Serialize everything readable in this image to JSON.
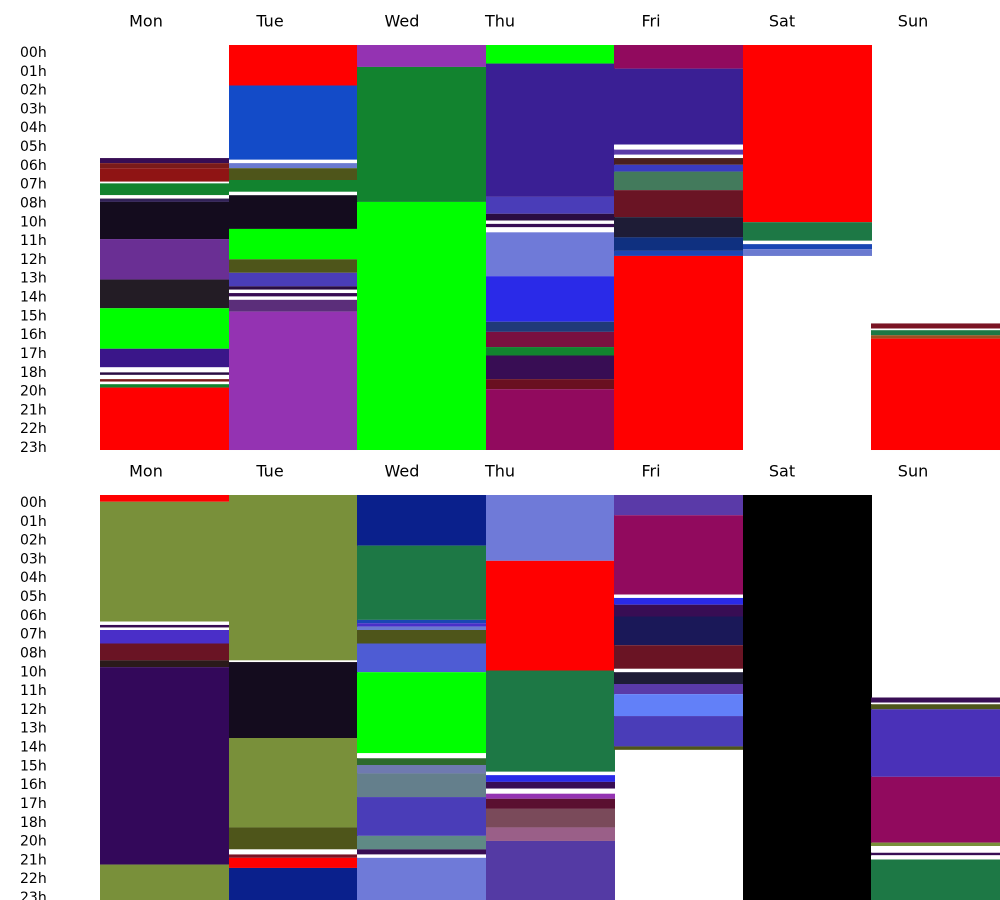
{
  "chart_data": [
    {
      "type": "heatmap",
      "categories": [
        "Mon",
        "Tue",
        "Wed",
        "Thu",
        "Fri",
        "Sat",
        "Sun"
      ],
      "hour_labels": [
        "00h",
        "01h",
        "02h",
        "03h",
        "04h",
        "05h",
        "06h",
        "07h",
        "08h",
        "10h",
        "11h",
        "12h",
        "13h",
        "14h",
        "15h",
        "16h",
        "17h",
        "18h",
        "20h",
        "21h",
        "22h",
        "23h"
      ],
      "ylim": [
        0,
        24
      ],
      "columns": [
        {
          "day": "Mon",
          "segments": [
            {
              "start": 6.7,
              "end": 7.0,
              "color": "#380d54"
            },
            {
              "start": 7.0,
              "end": 7.3,
              "color": "#7a1a1a"
            },
            {
              "start": 7.3,
              "end": 8.1,
              "color": "#8f1414"
            },
            {
              "start": 8.1,
              "end": 8.2,
              "color": "#ffffff"
            },
            {
              "start": 8.2,
              "end": 8.9,
              "color": "#12832f"
            },
            {
              "start": 8.9,
              "end": 9.1,
              "color": "#ffffff"
            },
            {
              "start": 9.1,
              "end": 9.3,
              "color": "#322257"
            },
            {
              "start": 9.3,
              "end": 11.5,
              "color": "#140c1e"
            },
            {
              "start": 11.5,
              "end": 13.9,
              "color": "#6a2f94"
            },
            {
              "start": 13.9,
              "end": 15.6,
              "color": "#231c25"
            },
            {
              "start": 15.6,
              "end": 18.0,
              "color": "#00ff00"
            },
            {
              "start": 18.0,
              "end": 19.1,
              "color": "#3a1689"
            },
            {
              "start": 19.1,
              "end": 19.4,
              "color": "#ffffff"
            },
            {
              "start": 19.4,
              "end": 19.55,
              "color": "#2a0d42"
            },
            {
              "start": 19.55,
              "end": 19.8,
              "color": "#ffffff"
            },
            {
              "start": 19.8,
              "end": 19.95,
              "color": "#7a1a1a"
            },
            {
              "start": 19.95,
              "end": 20.1,
              "color": "#ffffff"
            },
            {
              "start": 20.1,
              "end": 20.3,
              "color": "#12832f"
            },
            {
              "start": 20.3,
              "end": 24.0,
              "color": "#ff0000"
            }
          ]
        },
        {
          "day": "Tue",
          "segments": [
            {
              "start": 0.0,
              "end": 2.4,
              "color": "#ff0000"
            },
            {
              "start": 2.4,
              "end": 6.8,
              "color": "#134bc8"
            },
            {
              "start": 6.8,
              "end": 7.0,
              "color": "#ffffff"
            },
            {
              "start": 7.0,
              "end": 7.3,
              "color": "#6a7ad0"
            },
            {
              "start": 7.3,
              "end": 8.0,
              "color": "#4e551a"
            },
            {
              "start": 8.0,
              "end": 8.7,
              "color": "#12832f"
            },
            {
              "start": 8.7,
              "end": 8.9,
              "color": "#ffffff"
            },
            {
              "start": 8.9,
              "end": 10.9,
              "color": "#140c1e"
            },
            {
              "start": 10.9,
              "end": 12.7,
              "color": "#00ff00"
            },
            {
              "start": 12.7,
              "end": 13.5,
              "color": "#4e551a"
            },
            {
              "start": 13.5,
              "end": 14.3,
              "color": "#4a3db8"
            },
            {
              "start": 14.3,
              "end": 14.5,
              "color": "#2a0d42"
            },
            {
              "start": 14.5,
              "end": 14.7,
              "color": "#ffffff"
            },
            {
              "start": 14.7,
              "end": 14.9,
              "color": "#380d54"
            },
            {
              "start": 14.9,
              "end": 15.1,
              "color": "#ffffff"
            },
            {
              "start": 15.1,
              "end": 15.8,
              "color": "#5b2e7a"
            },
            {
              "start": 15.8,
              "end": 24.0,
              "color": "#9433b2"
            }
          ]
        },
        {
          "day": "Wed",
          "segments": [
            {
              "start": 0.0,
              "end": 1.3,
              "color": "#9433b2"
            },
            {
              "start": 1.3,
              "end": 9.3,
              "color": "#12832f"
            },
            {
              "start": 9.3,
              "end": 24.0,
              "color": "#00ff00"
            }
          ]
        },
        {
          "day": "Thu",
          "segments": [
            {
              "start": 0.0,
              "end": 1.1,
              "color": "#00ff00"
            },
            {
              "start": 1.1,
              "end": 9.0,
              "color": "#3a1f94"
            },
            {
              "start": 9.0,
              "end": 10.0,
              "color": "#4a3db8"
            },
            {
              "start": 10.0,
              "end": 10.4,
              "color": "#2a0d42"
            },
            {
              "start": 10.4,
              "end": 10.6,
              "color": "#ffffff"
            },
            {
              "start": 10.6,
              "end": 10.8,
              "color": "#380d54"
            },
            {
              "start": 10.8,
              "end": 11.1,
              "color": "#ffffff"
            },
            {
              "start": 11.1,
              "end": 13.7,
              "color": "#6f7ad8"
            },
            {
              "start": 13.7,
              "end": 16.4,
              "color": "#2a2ae8"
            },
            {
              "start": 16.4,
              "end": 17.0,
              "color": "#203a78"
            },
            {
              "start": 17.0,
              "end": 17.9,
              "color": "#7a1040"
            },
            {
              "start": 17.9,
              "end": 18.4,
              "color": "#12832f"
            },
            {
              "start": 18.4,
              "end": 19.8,
              "color": "#380d54"
            },
            {
              "start": 19.8,
              "end": 20.4,
              "color": "#6a1020"
            },
            {
              "start": 20.4,
              "end": 24.0,
              "color": "#910a5e"
            }
          ]
        },
        {
          "day": "Fri",
          "segments": [
            {
              "start": 0.0,
              "end": 1.4,
              "color": "#910a5e"
            },
            {
              "start": 1.4,
              "end": 5.9,
              "color": "#3a1f94"
            },
            {
              "start": 5.9,
              "end": 6.2,
              "color": "#ffffff"
            },
            {
              "start": 6.2,
              "end": 6.5,
              "color": "#5a3aa8"
            },
            {
              "start": 6.5,
              "end": 6.7,
              "color": "#ffffff"
            },
            {
              "start": 6.7,
              "end": 7.1,
              "color": "#4a1f1f"
            },
            {
              "start": 7.1,
              "end": 7.5,
              "color": "#3a3ac0"
            },
            {
              "start": 7.5,
              "end": 8.6,
              "color": "#437a5c"
            },
            {
              "start": 8.6,
              "end": 10.2,
              "color": "#6a1424"
            },
            {
              "start": 10.2,
              "end": 11.4,
              "color": "#1e1c36"
            },
            {
              "start": 11.4,
              "end": 12.2,
              "color": "#0f3080"
            },
            {
              "start": 12.2,
              "end": 12.5,
              "color": "#1a46b4"
            },
            {
              "start": 12.5,
              "end": 24.0,
              "color": "#ff0000"
            }
          ]
        },
        {
          "day": "Sat",
          "segments": [
            {
              "start": 0.0,
              "end": 10.5,
              "color": "#ff0000"
            },
            {
              "start": 10.5,
              "end": 11.6,
              "color": "#1d7845"
            },
            {
              "start": 11.6,
              "end": 11.8,
              "color": "#ffffff"
            },
            {
              "start": 11.8,
              "end": 12.1,
              "color": "#1a46b4"
            },
            {
              "start": 12.1,
              "end": 12.5,
              "color": "#6a7ad0"
            }
          ]
        },
        {
          "day": "Sun",
          "segments": [
            {
              "start": 16.5,
              "end": 16.8,
              "color": "#7a1424"
            },
            {
              "start": 16.8,
              "end": 16.9,
              "color": "#ffffff"
            },
            {
              "start": 16.9,
              "end": 17.2,
              "color": "#1d7845"
            },
            {
              "start": 17.2,
              "end": 17.4,
              "color": "#a04f20"
            },
            {
              "start": 17.4,
              "end": 24.0,
              "color": "#ff0000"
            }
          ]
        }
      ]
    },
    {
      "type": "heatmap",
      "categories": [
        "Mon",
        "Tue",
        "Wed",
        "Thu",
        "Fri",
        "Sat",
        "Sun"
      ],
      "hour_labels": [
        "00h",
        "01h",
        "02h",
        "03h",
        "04h",
        "05h",
        "06h",
        "07h",
        "08h",
        "10h",
        "11h",
        "12h",
        "13h",
        "14h",
        "15h",
        "16h",
        "17h",
        "18h",
        "20h",
        "21h",
        "22h",
        "23h"
      ],
      "ylim": [
        0,
        24
      ],
      "columns": [
        {
          "day": "Mon",
          "segments": [
            {
              "start": 0.0,
              "end": 0.4,
              "color": "#ff0000"
            },
            {
              "start": 0.4,
              "end": 7.5,
              "color": "#79903a"
            },
            {
              "start": 7.5,
              "end": 7.7,
              "color": "#ffffff"
            },
            {
              "start": 7.7,
              "end": 7.85,
              "color": "#380d54"
            },
            {
              "start": 7.85,
              "end": 8.0,
              "color": "#ffffff"
            },
            {
              "start": 8.0,
              "end": 8.8,
              "color": "#4a2fc8"
            },
            {
              "start": 8.8,
              "end": 9.8,
              "color": "#6a1424"
            },
            {
              "start": 9.8,
              "end": 10.2,
              "color": "#2a1a1a"
            },
            {
              "start": 10.2,
              "end": 21.9,
              "color": "#33085a"
            },
            {
              "start": 21.9,
              "end": 24.0,
              "color": "#79903a"
            }
          ]
        },
        {
          "day": "Tue",
          "segments": [
            {
              "start": 0.0,
              "end": 9.8,
              "color": "#79903a"
            },
            {
              "start": 9.8,
              "end": 9.9,
              "color": "#ffffff"
            },
            {
              "start": 9.9,
              "end": 14.4,
              "color": "#140c1e"
            },
            {
              "start": 14.4,
              "end": 19.7,
              "color": "#79903a"
            },
            {
              "start": 19.7,
              "end": 21.0,
              "color": "#4e551a"
            },
            {
              "start": 21.0,
              "end": 21.3,
              "color": "#ffffff"
            },
            {
              "start": 21.3,
              "end": 21.5,
              "color": "#7a1424"
            },
            {
              "start": 21.5,
              "end": 22.1,
              "color": "#ff0000"
            },
            {
              "start": 22.1,
              "end": 24.0,
              "color": "#0a208c"
            }
          ]
        },
        {
          "day": "Wed",
          "segments": [
            {
              "start": 0.0,
              "end": 3.0,
              "color": "#0a208c"
            },
            {
              "start": 3.0,
              "end": 7.4,
              "color": "#1d7845"
            },
            {
              "start": 7.4,
              "end": 7.6,
              "color": "#1a46b4"
            },
            {
              "start": 7.6,
              "end": 7.8,
              "color": "#4a2fc8"
            },
            {
              "start": 7.8,
              "end": 8.0,
              "color": "#6a7ad0"
            },
            {
              "start": 8.0,
              "end": 8.8,
              "color": "#4e551a"
            },
            {
              "start": 8.8,
              "end": 10.5,
              "color": "#4e5cd4"
            },
            {
              "start": 10.5,
              "end": 15.3,
              "color": "#00ff00"
            },
            {
              "start": 15.3,
              "end": 15.6,
              "color": "#ffffff"
            },
            {
              "start": 15.6,
              "end": 16.0,
              "color": "#2d6a2d"
            },
            {
              "start": 16.0,
              "end": 16.5,
              "color": "#6f7ab0"
            },
            {
              "start": 16.5,
              "end": 17.9,
              "color": "#647f8c"
            },
            {
              "start": 17.9,
              "end": 20.2,
              "color": "#4a3db8"
            },
            {
              "start": 20.2,
              "end": 21.0,
              "color": "#5f8a85"
            },
            {
              "start": 21.0,
              "end": 21.3,
              "color": "#380d54"
            },
            {
              "start": 21.3,
              "end": 21.5,
              "color": "#ffffff"
            },
            {
              "start": 21.5,
              "end": 24.0,
              "color": "#6f7ad8"
            }
          ]
        },
        {
          "day": "Thu",
          "segments": [
            {
              "start": 0.0,
              "end": 3.9,
              "color": "#6f7ad8"
            },
            {
              "start": 3.9,
              "end": 10.4,
              "color": "#ff0000"
            },
            {
              "start": 10.4,
              "end": 16.4,
              "color": "#1d7845"
            },
            {
              "start": 16.4,
              "end": 16.6,
              "color": "#ffffff"
            },
            {
              "start": 16.6,
              "end": 17.0,
              "color": "#2a2ae8"
            },
            {
              "start": 17.0,
              "end": 17.4,
              "color": "#380d54"
            },
            {
              "start": 17.4,
              "end": 17.7,
              "color": "#ffffff"
            },
            {
              "start": 17.7,
              "end": 18.0,
              "color": "#9433b2"
            },
            {
              "start": 18.0,
              "end": 18.6,
              "color": "#5a0f30"
            },
            {
              "start": 18.6,
              "end": 19.7,
              "color": "#7a4a5a"
            },
            {
              "start": 19.7,
              "end": 20.5,
              "color": "#9a5f88"
            },
            {
              "start": 20.5,
              "end": 24.0,
              "color": "#543aa4"
            }
          ]
        },
        {
          "day": "Fri",
          "segments": [
            {
              "start": 0.0,
              "end": 1.2,
              "color": "#5a3aa8"
            },
            {
              "start": 1.2,
              "end": 5.9,
              "color": "#910a5e"
            },
            {
              "start": 5.9,
              "end": 6.1,
              "color": "#ffffff"
            },
            {
              "start": 6.1,
              "end": 6.5,
              "color": "#2a2ae8"
            },
            {
              "start": 6.5,
              "end": 7.2,
              "color": "#380d54"
            },
            {
              "start": 7.2,
              "end": 8.9,
              "color": "#1a1858"
            },
            {
              "start": 8.9,
              "end": 10.3,
              "color": "#6a1424"
            },
            {
              "start": 10.3,
              "end": 10.5,
              "color": "#ffffff"
            },
            {
              "start": 10.5,
              "end": 11.2,
              "color": "#1e1c36"
            },
            {
              "start": 11.2,
              "end": 11.8,
              "color": "#5a3aa8"
            },
            {
              "start": 11.8,
              "end": 13.1,
              "color": "#6280f8"
            },
            {
              "start": 13.1,
              "end": 14.9,
              "color": "#4a3db8"
            },
            {
              "start": 14.9,
              "end": 15.1,
              "color": "#4e551a"
            }
          ]
        },
        {
          "day": "Sat",
          "segments": [
            {
              "start": 0.0,
              "end": 24.0,
              "color": "#000000"
            }
          ]
        },
        {
          "day": "Sun",
          "segments": [
            {
              "start": 12.0,
              "end": 12.3,
              "color": "#380d54"
            },
            {
              "start": 12.3,
              "end": 12.4,
              "color": "#ffffff"
            },
            {
              "start": 12.4,
              "end": 12.7,
              "color": "#4e551a"
            },
            {
              "start": 12.7,
              "end": 16.7,
              "color": "#4a31b8"
            },
            {
              "start": 16.7,
              "end": 20.6,
              "color": "#910a5e"
            },
            {
              "start": 20.6,
              "end": 20.8,
              "color": "#79903a"
            },
            {
              "start": 20.8,
              "end": 21.2,
              "color": "#ffffff"
            },
            {
              "start": 21.2,
              "end": 21.35,
              "color": "#380d54"
            },
            {
              "start": 21.35,
              "end": 21.6,
              "color": "#ffffff"
            },
            {
              "start": 21.6,
              "end": 24.0,
              "color": "#1d7845"
            }
          ]
        }
      ]
    }
  ]
}
